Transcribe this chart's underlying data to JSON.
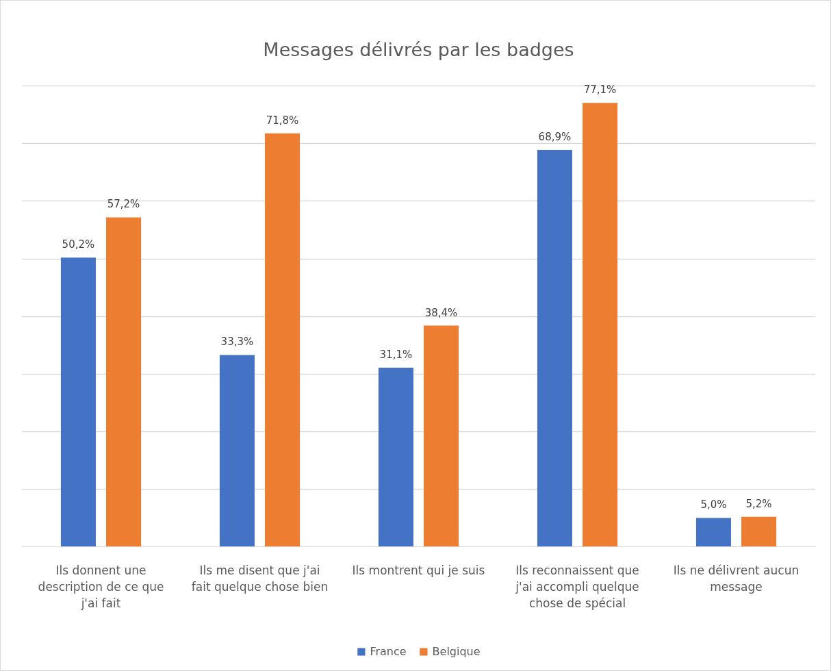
{
  "chart_data": {
    "type": "bar",
    "title": "Messages délivrés par les badges",
    "categories": [
      "Ils donnent une description de ce que j'ai fait",
      "Ils me disent que j'ai fait quelque chose bien",
      "Ils montrent qui je suis",
      "Ils reconnaissent que j'ai accompli quelque chose de spécial",
      "Ils ne délivrent aucun message"
    ],
    "series": [
      {
        "name": "France",
        "color": "#4472c4",
        "values": [
          50.2,
          33.3,
          31.1,
          68.9,
          5.0
        ],
        "value_labels": [
          "50,2%",
          "33,3%",
          "31,1%",
          "68,9%",
          "5,0%"
        ]
      },
      {
        "name": "Belgique",
        "color": "#ed7d31",
        "values": [
          57.2,
          71.8,
          38.4,
          77.1,
          5.2
        ],
        "value_labels": [
          "57,2%",
          "71,8%",
          "38,4%",
          "77,1%",
          "5,2%"
        ]
      }
    ],
    "grid": "y",
    "legend": "bottom",
    "tick_labels": "x"
  }
}
